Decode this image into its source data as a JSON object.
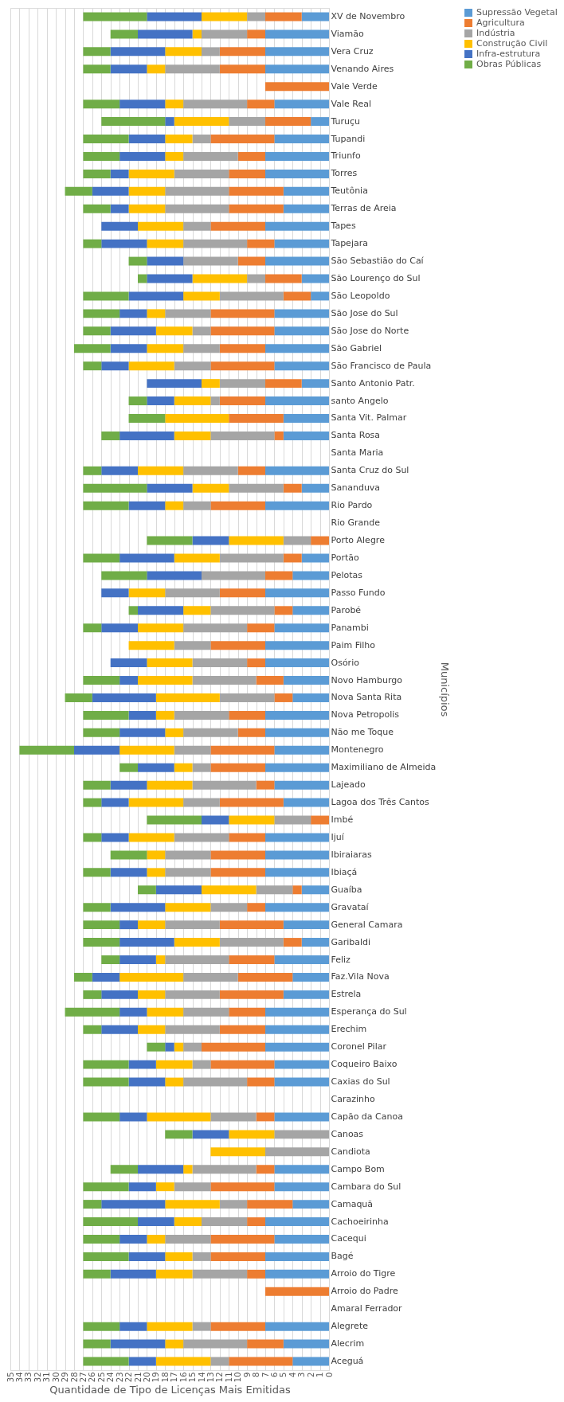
{
  "chart_data": {
    "type": "bar",
    "orientation": "horizontal",
    "stacked": true,
    "grid": "x",
    "legend": "right",
    "xlabel": "Quantidade de Tipo de Licenças Mais Emitidas",
    "ylabel": "Municípios",
    "xlim": [
      35,
      0
    ],
    "xticks": [
      0,
      1,
      2,
      3,
      4,
      5,
      6,
      7,
      8,
      9,
      10,
      11,
      12,
      13,
      14,
      15,
      16,
      17,
      18,
      19,
      20,
      21,
      22,
      23,
      24,
      25,
      26,
      27,
      28,
      29,
      30,
      31,
      32,
      33,
      34,
      35
    ],
    "categories": [
      "XV de Novembro",
      "Viamão",
      "Vera Cruz",
      "Venando Aires",
      "Vale Verde",
      "Vale Real",
      "Turuçu",
      "Tupandi",
      "Triunfo",
      "Torres",
      "Teutônia",
      "Terras de Areia",
      "Tapes",
      "Tapejara",
      "São Sebastião do Caí",
      "São Lourenço do Sul",
      "São Leopoldo",
      "São Jose do Sul",
      "São Jose do Norte",
      "São Gabriel",
      "São Francisco de Paula",
      "Santo Antonio Patr.",
      "santo Angelo",
      "Santa Vit. Palmar",
      "Santa Rosa",
      "Santa Maria",
      "Santa Cruz do Sul",
      "Sananduva",
      "Rio Pardo",
      "Rio Grande",
      "Porto Alegre",
      "Portão",
      "Pelotas",
      "Passo Fundo",
      "Parobé",
      "Panambi",
      "Paim Filho",
      "Osório",
      "Novo Hamburgo",
      "Nova Santa Rita",
      "Nova Petropolis",
      "Não me Toque",
      "Montenegro",
      "Maximiliano de Almeida",
      "Lajeado",
      "Lagoa dos Três Cantos",
      "Imbé",
      "Ijuí",
      "Ibiraiaras",
      "Ibiaçá",
      "Guaíba",
      "Gravataí",
      "General Camara",
      "Garibaldi",
      "Feliz",
      "Faz.Vila Nova",
      "Estrela",
      "Esperança do Sul",
      "Erechim",
      "Coronel Pilar",
      "Coqueiro Baixo",
      "Caxias do Sul",
      "Carazinho",
      "Capão da Canoa",
      "Canoas",
      "Candiota",
      "Campo Bom",
      "Cambara do Sul",
      "Camaquã",
      "Cachoeirinha",
      "Cacequi",
      "Bagé",
      "Arroio do Tigre",
      "Arroio do Padre",
      "Amaral Ferrador",
      "Alegrete",
      "Alecrim",
      "Aceguá"
    ],
    "series": [
      {
        "name": "Supressão Vegetal",
        "color": "#5b9bd5",
        "values": [
          3,
          7,
          7,
          7,
          null,
          6,
          2,
          6,
          7,
          7,
          5,
          5,
          7,
          6,
          7,
          3,
          2,
          6,
          6,
          7,
          6,
          3,
          7,
          5,
          5,
          null,
          7,
          3,
          7,
          null,
          null,
          3,
          4,
          7,
          4,
          6,
          7,
          7,
          5,
          4,
          7,
          7,
          6,
          7,
          6,
          5,
          null,
          7,
          7,
          7,
          3,
          7,
          5,
          3,
          6,
          4,
          5,
          7,
          7,
          7,
          6,
          6,
          null,
          6,
          null,
          null,
          6,
          6,
          4,
          7,
          6,
          7,
          7,
          null,
          null,
          7,
          5,
          4
        ]
      },
      {
        "name": "Agricultura",
        "color": "#ed7d31",
        "values": [
          4,
          2,
          5,
          5,
          7,
          3,
          5,
          7,
          3,
          4,
          6,
          6,
          6,
          3,
          3,
          4,
          3,
          7,
          7,
          5,
          7,
          4,
          5,
          6,
          1,
          null,
          3,
          2,
          6,
          null,
          2,
          2,
          3,
          5,
          2,
          3,
          6,
          2,
          3,
          2,
          4,
          3,
          7,
          6,
          2,
          7,
          2,
          4,
          6,
          6,
          1,
          2,
          7,
          2,
          5,
          6,
          7,
          4,
          5,
          7,
          7,
          3,
          null,
          2,
          null,
          null,
          2,
          7,
          5,
          2,
          7,
          6,
          2,
          7,
          null,
          6,
          4,
          7
        ]
      },
      {
        "name": "Indústria",
        "color": "#a5a5a5",
        "values": [
          2,
          5,
          2,
          6,
          null,
          7,
          4,
          2,
          6,
          6,
          7,
          7,
          3,
          7,
          6,
          2,
          7,
          5,
          2,
          4,
          4,
          5,
          1,
          null,
          7,
          null,
          6,
          6,
          3,
          null,
          3,
          7,
          7,
          6,
          7,
          7,
          4,
          6,
          7,
          6,
          6,
          6,
          4,
          2,
          7,
          4,
          4,
          6,
          5,
          5,
          4,
          4,
          6,
          7,
          7,
          6,
          6,
          5,
          6,
          2,
          2,
          7,
          null,
          5,
          6,
          7,
          7,
          4,
          3,
          5,
          5,
          2,
          6,
          null,
          null,
          2,
          7,
          2
        ]
      },
      {
        "name": "Construção Civil",
        "color": "#ffc000",
        "values": [
          5,
          1,
          4,
          2,
          null,
          2,
          6,
          3,
          2,
          5,
          4,
          4,
          5,
          4,
          null,
          6,
          4,
          2,
          4,
          4,
          5,
          2,
          4,
          7,
          4,
          null,
          5,
          4,
          2,
          null,
          6,
          5,
          null,
          4,
          3,
          5,
          5,
          5,
          6,
          7,
          2,
          2,
          6,
          2,
          5,
          6,
          5,
          5,
          2,
          2,
          6,
          5,
          3,
          5,
          1,
          7,
          3,
          4,
          3,
          1,
          4,
          2,
          null,
          7,
          5,
          6,
          1,
          2,
          6,
          3,
          2,
          3,
          4,
          null,
          null,
          5,
          2,
          6
        ]
      },
      {
        "name": "Infra-estrutura",
        "color": "#4472c4",
        "values": [
          6,
          6,
          6,
          4,
          null,
          5,
          1,
          4,
          5,
          2,
          4,
          2,
          4,
          5,
          4,
          5,
          6,
          3,
          5,
          4,
          3,
          6,
          3,
          null,
          6,
          null,
          4,
          5,
          4,
          null,
          4,
          6,
          6,
          3,
          5,
          4,
          null,
          4,
          2,
          7,
          3,
          5,
          5,
          4,
          4,
          3,
          3,
          3,
          null,
          4,
          5,
          6,
          2,
          6,
          4,
          3,
          4,
          3,
          4,
          1,
          3,
          4,
          null,
          3,
          4,
          null,
          5,
          3,
          7,
          4,
          3,
          4,
          5,
          null,
          null,
          3,
          6,
          3
        ]
      },
      {
        "name": "Obras Públicas",
        "color": "#70ad47",
        "values": [
          7,
          3,
          3,
          3,
          null,
          4,
          7,
          5,
          4,
          3,
          3,
          3,
          null,
          2,
          2,
          1,
          5,
          4,
          3,
          4,
          2,
          null,
          2,
          4,
          2,
          null,
          2,
          7,
          5,
          null,
          5,
          4,
          5,
          null,
          1,
          2,
          null,
          null,
          4,
          3,
          5,
          4,
          6,
          2,
          3,
          2,
          6,
          2,
          4,
          3,
          2,
          3,
          4,
          4,
          2,
          2,
          2,
          6,
          2,
          2,
          5,
          5,
          null,
          4,
          3,
          null,
          3,
          5,
          2,
          6,
          4,
          5,
          3,
          null,
          null,
          4,
          3,
          5
        ]
      }
    ]
  }
}
